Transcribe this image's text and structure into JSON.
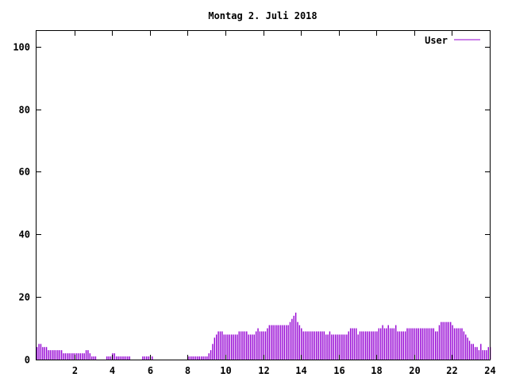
{
  "chart_data": {
    "type": "bar",
    "title": "Montag 2. Juli 2018",
    "xlabel": "",
    "ylabel": "",
    "xlim": [
      0,
      24
    ],
    "ylim": [
      0,
      105
    ],
    "x_ticks": [
      "2",
      "4",
      "6",
      "8",
      "10",
      "12",
      "14",
      "16",
      "18",
      "20",
      "22",
      "24"
    ],
    "y_ticks": [
      "0",
      "20",
      "40",
      "60",
      "80",
      "100"
    ],
    "grid": false,
    "legend_position": "top-right",
    "series": [
      {
        "name": "User",
        "color": "#9400d3",
        "bin_hours": 0.1,
        "values": [
          4,
          5,
          5,
          4,
          4,
          4,
          3,
          3,
          3,
          3,
          3,
          3,
          3,
          3,
          2,
          2,
          2,
          2,
          2,
          2,
          2,
          2,
          2,
          2,
          2,
          2,
          3,
          3,
          2,
          1,
          1,
          1,
          0,
          0,
          0,
          0,
          0,
          1,
          1,
          1,
          2,
          2,
          1,
          1,
          1,
          1,
          1,
          1,
          1,
          1,
          0,
          0,
          0,
          0,
          0,
          0,
          1,
          1,
          1,
          1,
          1,
          1,
          0,
          0,
          0,
          0,
          0,
          0,
          0,
          0,
          0,
          0,
          0,
          0,
          0,
          0,
          0,
          0,
          0,
          0,
          1,
          1,
          1,
          1,
          1,
          1,
          1,
          1,
          1,
          1,
          1,
          2,
          3,
          5,
          7,
          8,
          9,
          9,
          9,
          8,
          8,
          8,
          8,
          8,
          8,
          8,
          8,
          9,
          9,
          9,
          9,
          9,
          8,
          8,
          8,
          8,
          9,
          10,
          9,
          9,
          9,
          9,
          10,
          11,
          11,
          11,
          11,
          11,
          11,
          11,
          11,
          11,
          11,
          11,
          12,
          13,
          14,
          15,
          12,
          11,
          10,
          9,
          9,
          9,
          9,
          9,
          9,
          9,
          9,
          9,
          9,
          9,
          9,
          8,
          8,
          9,
          8,
          8,
          8,
          8,
          8,
          8,
          8,
          8,
          8,
          9,
          10,
          10,
          10,
          10,
          8,
          9,
          9,
          9,
          9,
          9,
          9,
          9,
          9,
          9,
          9,
          10,
          10,
          11,
          10,
          10,
          11,
          10,
          10,
          10,
          11,
          9,
          9,
          9,
          9,
          9,
          10,
          10,
          10,
          10,
          10,
          10,
          10,
          10,
          10,
          10,
          10,
          10,
          10,
          10,
          10,
          9,
          9,
          11,
          12,
          12,
          12,
          12,
          12,
          12,
          11,
          10,
          10,
          10,
          10,
          10,
          9,
          8,
          7,
          6,
          5,
          5,
          4,
          4,
          3,
          5,
          3,
          3,
          3,
          4,
          4
        ]
      }
    ]
  }
}
